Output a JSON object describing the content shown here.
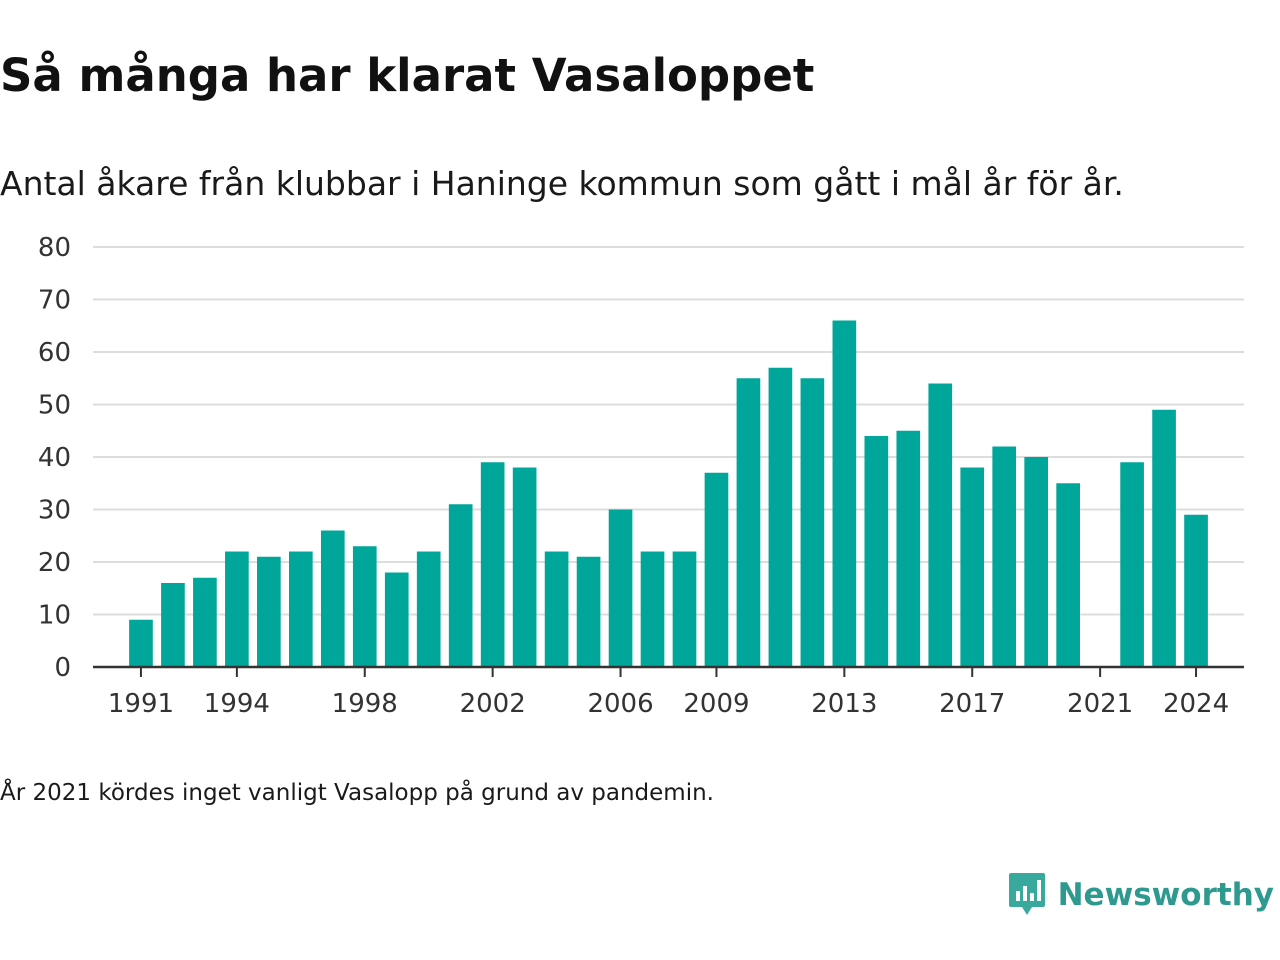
{
  "title": "Så många har klarat Vasaloppet",
  "subtitle": "Antal åkare från klubbar i Haninge kommun som gått i mål år för år.",
  "footnote": "År 2021 kördes inget vanligt Vasalopp på grund av pandemin.",
  "brand": {
    "name": "Newsworthy",
    "icon": "newsworthy-logo-icon",
    "color": "#2e9a8f"
  },
  "chart_data": {
    "type": "bar",
    "x": [
      1990,
      1991,
      1992,
      1993,
      1994,
      1995,
      1996,
      1997,
      1998,
      1999,
      2000,
      2001,
      2002,
      2003,
      2004,
      2005,
      2006,
      2007,
      2008,
      2009,
      2010,
      2011,
      2012,
      2013,
      2014,
      2015,
      2016,
      2017,
      2018,
      2019,
      2020,
      2021,
      2022,
      2023,
      2024,
      2025
    ],
    "values": [
      null,
      9,
      16,
      17,
      22,
      21,
      22,
      26,
      23,
      18,
      22,
      31,
      39,
      38,
      22,
      21,
      30,
      22,
      22,
      37,
      55,
      57,
      55,
      66,
      44,
      45,
      54,
      38,
      42,
      40,
      35,
      null,
      39,
      49,
      29,
      null
    ],
    "xticks": [
      1991,
      1994,
      1998,
      2002,
      2006,
      2009,
      2013,
      2017,
      2021,
      2024
    ],
    "yticks": [
      0,
      10,
      20,
      30,
      40,
      50,
      60,
      70,
      80
    ],
    "ylim": [
      0,
      80
    ],
    "xlabel": "",
    "ylabel": "",
    "grid": true,
    "bar_color": "#00a69a",
    "grid_color": "#dddddd",
    "axis_color": "#333333"
  }
}
